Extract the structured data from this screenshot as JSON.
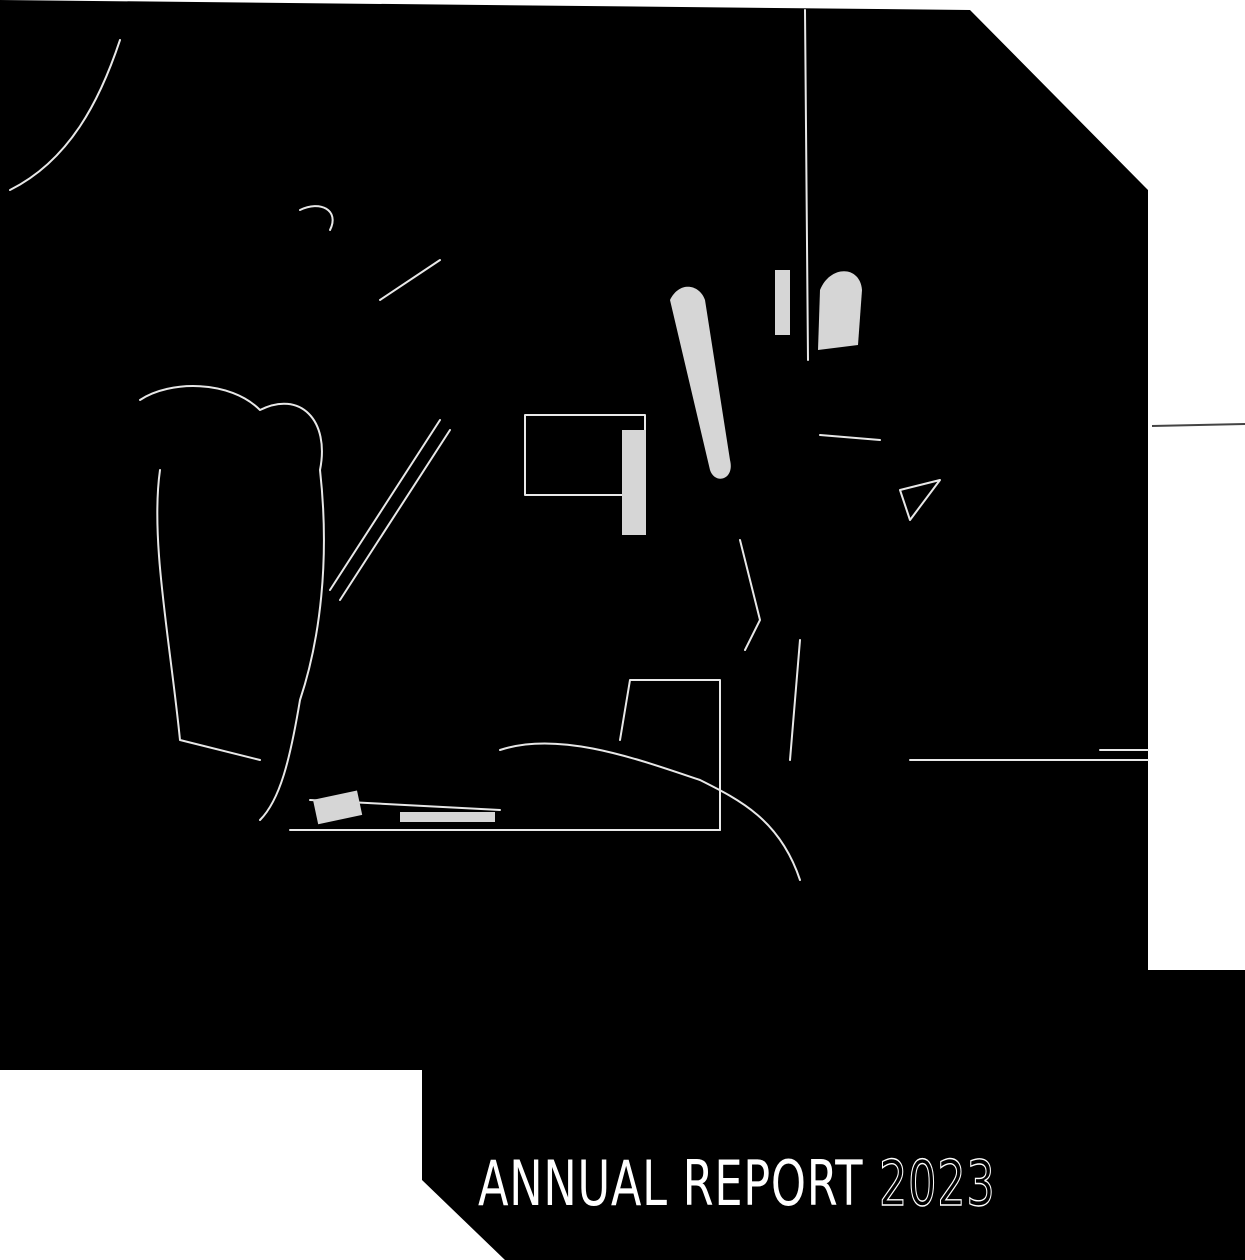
{
  "cover": {
    "title": "ANNUAL REPORT",
    "year": "2023"
  }
}
